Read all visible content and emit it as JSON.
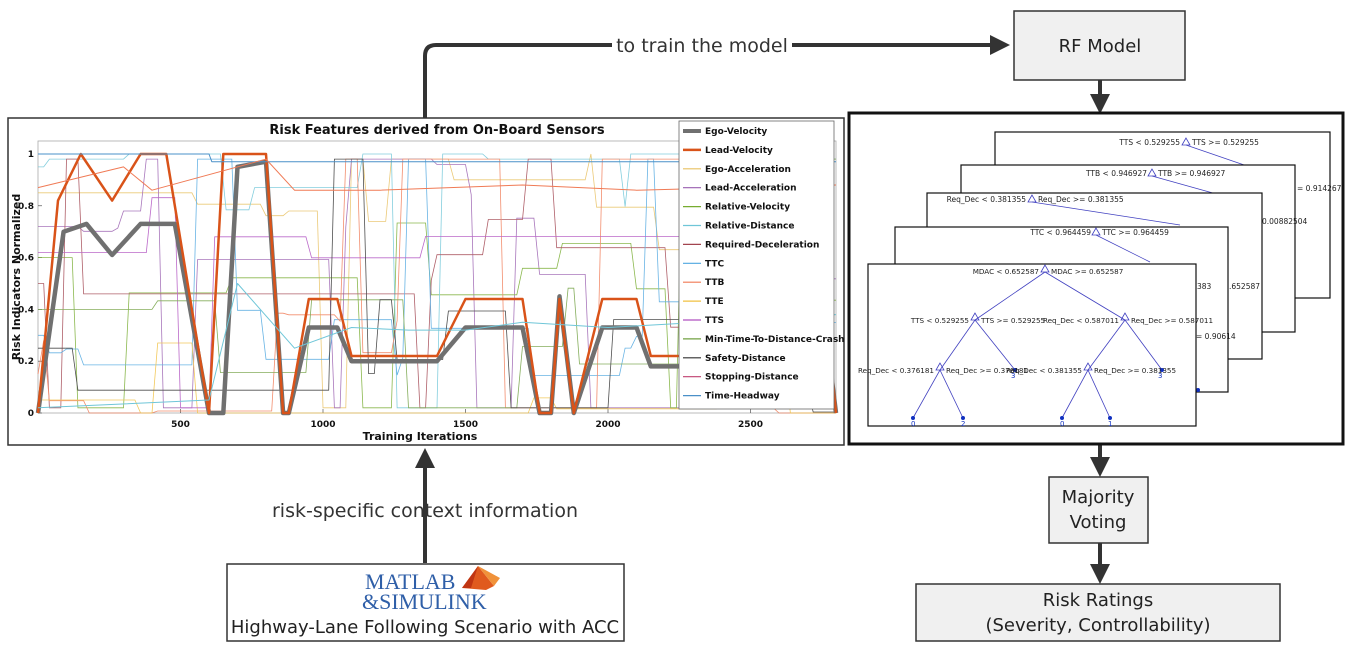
{
  "flow": {
    "train_label": "to train the model",
    "context_label": "risk-specific context information"
  },
  "rf_model": {
    "label": "RF Model"
  },
  "majority": {
    "line1": "Majority",
    "line2": "Voting"
  },
  "ratings": {
    "line1": "Risk Ratings",
    "line2": "(Severity, Controllability)"
  },
  "matlab": {
    "logo_line1": "MATLAB",
    "logo_line2": "&SIMULINK",
    "caption": "Highway-Lane Following Scenario with ACC"
  },
  "chart": {
    "title": "Risk Features derived from On-Board Sensors",
    "ylabel": "Risk Indicators Normalized",
    "xlabel": "Training Iterations"
  },
  "chart_data": {
    "type": "line",
    "title": "Risk Features derived from On-Board Sensors",
    "xlabel": "Training Iterations",
    "ylabel": "Risk Indicators Normalized",
    "xlim": [
      0,
      2800
    ],
    "ylim": [
      0,
      1.05
    ],
    "xticks": [
      500,
      1000,
      1500,
      2000,
      2500
    ],
    "yticks": [
      0,
      0.2,
      0.4,
      0.6,
      0.8,
      1
    ],
    "yticklabels": [
      "0",
      "0.2",
      "0.4",
      "0.6",
      "0.8",
      "1"
    ],
    "legend_position": "top-right",
    "legend": [
      {
        "name": "Ego-Velocity",
        "color": "#707070"
      },
      {
        "name": "Lead-Velocity",
        "color": "#d95319"
      },
      {
        "name": "Ego-Acceleration",
        "color": "#e8c060"
      },
      {
        "name": "Lead-Acceleration",
        "color": "#9a5fb0"
      },
      {
        "name": "Relative-Velocity",
        "color": "#77ac30"
      },
      {
        "name": "Relative-Distance",
        "color": "#6fc6d8"
      },
      {
        "name": "Required-Deceleration",
        "color": "#a2444f"
      },
      {
        "name": "TTC",
        "color": "#4fa7e0"
      },
      {
        "name": "TTB",
        "color": "#f07a55"
      },
      {
        "name": "TTE",
        "color": "#f0c040"
      },
      {
        "name": "TTS",
        "color": "#b050c0"
      },
      {
        "name": "Min-Time-To-Distance-Crash",
        "color": "#70a040"
      },
      {
        "name": "Safety-Distance",
        "color": "#303030"
      },
      {
        "name": "Stopping-Distance",
        "color": "#c04070"
      },
      {
        "name": "Time-Headway",
        "color": "#4a90c8"
      }
    ],
    "series": [
      {
        "name": "Ego-Velocity",
        "x": [
          0,
          90,
          170,
          260,
          360,
          480,
          600,
          650,
          700,
          800,
          860,
          880,
          950,
          1050,
          1100,
          1400,
          1500,
          1700,
          1760,
          1800,
          1830,
          1880,
          1980,
          2100,
          2150,
          2400,
          2780,
          2800
        ],
        "y": [
          0,
          0.7,
          0.73,
          0.61,
          0.73,
          0.73,
          0,
          0,
          0.95,
          0.97,
          0,
          0,
          0.33,
          0.33,
          0.2,
          0.2,
          0.33,
          0.33,
          0,
          0,
          0.45,
          0,
          0.33,
          0.33,
          0.18,
          0.18,
          0.18,
          0
        ]
      },
      {
        "name": "Lead-Velocity",
        "x": [
          0,
          70,
          150,
          260,
          360,
          450,
          600,
          650,
          700,
          800,
          860,
          880,
          950,
          1050,
          1100,
          1400,
          1500,
          1700,
          1760,
          1800,
          1830,
          1880,
          1980,
          2100,
          2150,
          2400,
          2780,
          2800
        ],
        "y": [
          0,
          0.82,
          1,
          0.82,
          1,
          1,
          0,
          1,
          1,
          1,
          0,
          0,
          0.44,
          0.44,
          0.22,
          0.22,
          0.44,
          0.44,
          0,
          0,
          0.44,
          0,
          0.44,
          0.44,
          0.22,
          0.22,
          0.22,
          0
        ]
      },
      {
        "name": "Time-Headway",
        "x": [
          0,
          600,
          610,
          2800
        ],
        "y": [
          1,
          1,
          0.97,
          0.97
        ]
      },
      {
        "name": "TTB",
        "x": [
          0,
          300,
          400,
          800,
          900,
          1200,
          1700,
          2100,
          2800
        ],
        "y": [
          0.87,
          0.95,
          0.86,
          0.98,
          0.86,
          0.86,
          0.88,
          0.86,
          0.88
        ]
      },
      {
        "name": "Relative-Distance",
        "x": [
          0,
          600,
          700,
          900,
          1100,
          1300,
          1500,
          1700,
          2000,
          2800
        ],
        "y": [
          0.02,
          0.05,
          0.5,
          0.25,
          0.33,
          0.32,
          0.32,
          0.35,
          0.33,
          0.38
        ]
      }
    ]
  },
  "tree": {
    "l1_root": "TTS < 0.529255",
    "l1_root_r": "TTS >= 0.529255",
    "l1_right": "= 0.914267",
    "l2_root": "TTB < 0.946927",
    "l2_root_r": "TTB >= 0.946927",
    "l2_right": "0.00882504",
    "l3_root": "Req_Dec < 0.381355",
    "l3_root_r": "Req_Dec >= 0.381355",
    "l3_right": ".652587",
    "l4_root": "TTC < 0.964459",
    "l4_root_r": "TTC >= 0.964459",
    "l4_right1": "383",
    "l4_right2": "= 0.90614",
    "front": {
      "root_l": "MDAC < 0.652587",
      "root_r": "MDAC >= 0.652587",
      "l_split_l": "TTS < 0.529255",
      "l_split_r": "TTS >= 0.529255",
      "r_split_l": "Req_Dec < 0.587011",
      "r_split_r": "Req_Dec >= 0.587011",
      "ll_split_l": "Req_Dec < 0.376181",
      "ll_split_r": "Req_Dec >= 0.376181",
      "rl_split_l": "Req_Dec < 0.381355",
      "rl_split_r": "Req_Dec >= 0.381355",
      "leaf_a": "0",
      "leaf_b": "2",
      "leaf_c": "3",
      "leaf_d": "0",
      "leaf_e": "1",
      "leaf_f": "3"
    }
  }
}
